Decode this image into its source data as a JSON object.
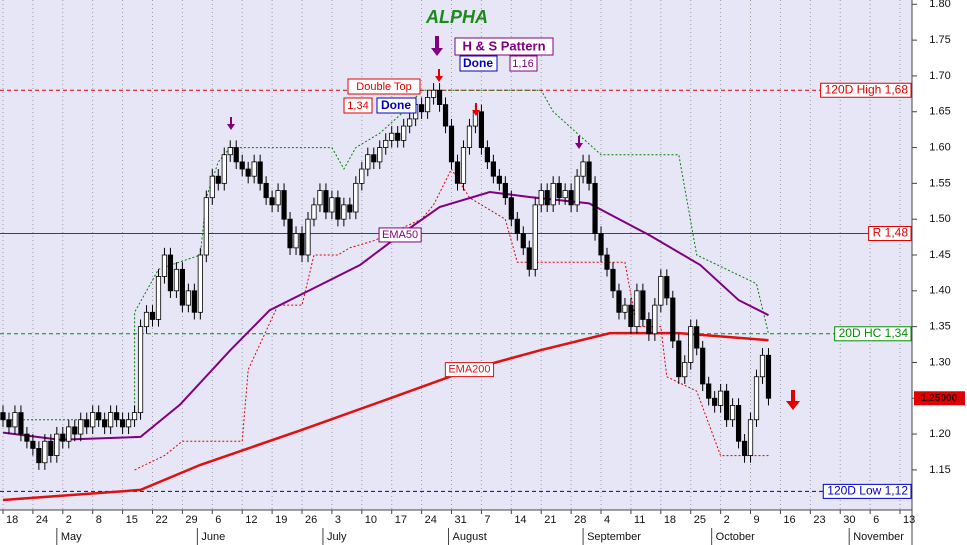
{
  "chart_data": {
    "type": "candlestick",
    "title": "ALPHA",
    "annotations": [
      "H & S Pattern",
      "Done",
      "1,16",
      "Double Top",
      "1,34",
      "Done"
    ],
    "x": [
      0,
      1,
      2,
      3,
      4,
      5,
      6,
      7,
      8,
      9,
      10,
      11,
      12,
      13,
      14,
      15,
      16,
      17,
      18,
      19,
      20,
      21,
      22,
      23,
      24,
      25,
      26,
      27,
      28,
      29,
      30,
      31,
      32,
      33,
      34,
      35,
      36,
      37,
      38,
      39,
      40,
      41,
      42,
      43,
      44,
      45,
      46,
      47,
      48,
      49,
      50,
      51,
      52,
      53,
      54,
      55,
      56,
      57,
      58,
      59,
      60,
      61,
      62,
      63,
      64,
      65,
      66,
      67,
      68,
      69,
      70,
      71,
      72,
      73,
      74,
      75,
      76,
      77,
      78,
      79,
      80,
      81,
      82,
      83,
      84,
      85,
      86,
      87,
      88,
      89,
      90,
      91,
      92,
      93,
      94,
      95,
      96,
      97,
      98,
      99,
      100,
      101,
      102,
      103,
      104,
      105,
      106,
      107,
      108,
      109,
      110,
      111,
      112,
      113,
      114,
      115,
      116,
      117,
      118,
      119,
      120,
      121,
      122,
      123,
      124,
      125,
      126,
      127,
      128
    ],
    "open": [
      1.23,
      1.22,
      1.21,
      1.23,
      1.2,
      1.19,
      1.18,
      1.16,
      1.19,
      1.17,
      1.2,
      1.19,
      1.21,
      1.2,
      1.22,
      1.21,
      1.23,
      1.22,
      1.21,
      1.23,
      1.22,
      1.21,
      1.22,
      1.23,
      1.35,
      1.37,
      1.36,
      1.42,
      1.45,
      1.4,
      1.43,
      1.38,
      1.4,
      1.37,
      1.45,
      1.53,
      1.56,
      1.55,
      1.59,
      1.6,
      1.58,
      1.57,
      1.56,
      1.58,
      1.55,
      1.53,
      1.52,
      1.54,
      1.5,
      1.46,
      1.48,
      1.45,
      1.5,
      1.52,
      1.54,
      1.51,
      1.53,
      1.5,
      1.52,
      1.51,
      1.55,
      1.57,
      1.59,
      1.58,
      1.6,
      1.61,
      1.62,
      1.61,
      1.63,
      1.64,
      1.66,
      1.65,
      1.67,
      1.68,
      1.66,
      1.63,
      1.58,
      1.55,
      1.6,
      1.63,
      1.65,
      1.6,
      1.58,
      1.56,
      1.55,
      1.53,
      1.5,
      1.48,
      1.46,
      1.43,
      1.52,
      1.54,
      1.52,
      1.55,
      1.53,
      1.54,
      1.52,
      1.56,
      1.58,
      1.55,
      1.48,
      1.45,
      1.43,
      1.4,
      1.37,
      1.38,
      1.35,
      1.4,
      1.36,
      1.34,
      1.38,
      1.42,
      1.39,
      1.33,
      1.28,
      1.3,
      1.35,
      1.32,
      1.27,
      1.25,
      1.24,
      1.26,
      1.22,
      1.24,
      1.19,
      1.17,
      1.22,
      1.28,
      1.31
    ],
    "high": [
      1.24,
      1.23,
      1.24,
      1.24,
      1.21,
      1.2,
      1.19,
      1.2,
      1.2,
      1.21,
      1.21,
      1.22,
      1.22,
      1.23,
      1.23,
      1.24,
      1.24,
      1.23,
      1.24,
      1.24,
      1.23,
      1.23,
      1.24,
      1.36,
      1.38,
      1.38,
      1.43,
      1.46,
      1.46,
      1.44,
      1.44,
      1.41,
      1.41,
      1.46,
      1.54,
      1.57,
      1.57,
      1.6,
      1.61,
      1.61,
      1.59,
      1.58,
      1.59,
      1.59,
      1.56,
      1.54,
      1.55,
      1.55,
      1.51,
      1.49,
      1.49,
      1.51,
      1.53,
      1.55,
      1.55,
      1.54,
      1.54,
      1.53,
      1.53,
      1.56,
      1.58,
      1.6,
      1.6,
      1.61,
      1.62,
      1.63,
      1.63,
      1.64,
      1.65,
      1.67,
      1.67,
      1.68,
      1.69,
      1.69,
      1.67,
      1.64,
      1.59,
      1.61,
      1.64,
      1.66,
      1.66,
      1.61,
      1.59,
      1.57,
      1.56,
      1.54,
      1.51,
      1.49,
      1.47,
      1.53,
      1.55,
      1.55,
      1.56,
      1.56,
      1.55,
      1.55,
      1.57,
      1.59,
      1.59,
      1.56,
      1.49,
      1.46,
      1.44,
      1.41,
      1.39,
      1.39,
      1.41,
      1.41,
      1.37,
      1.39,
      1.43,
      1.43,
      1.4,
      1.34,
      1.31,
      1.36,
      1.36,
      1.33,
      1.28,
      1.26,
      1.27,
      1.27,
      1.25,
      1.25,
      1.2,
      1.23,
      1.29,
      1.32,
      1.32
    ],
    "low": [
      1.21,
      1.2,
      1.2,
      1.19,
      1.18,
      1.17,
      1.15,
      1.15,
      1.16,
      1.16,
      1.18,
      1.18,
      1.19,
      1.19,
      1.2,
      1.2,
      1.21,
      1.2,
      1.2,
      1.21,
      1.2,
      1.2,
      1.21,
      1.22,
      1.34,
      1.35,
      1.35,
      1.41,
      1.39,
      1.39,
      1.37,
      1.37,
      1.36,
      1.36,
      1.44,
      1.52,
      1.54,
      1.54,
      1.58,
      1.57,
      1.56,
      1.55,
      1.55,
      1.54,
      1.52,
      1.51,
      1.51,
      1.49,
      1.45,
      1.45,
      1.44,
      1.44,
      1.49,
      1.51,
      1.5,
      1.5,
      1.49,
      1.49,
      1.5,
      1.5,
      1.54,
      1.56,
      1.57,
      1.57,
      1.59,
      1.6,
      1.6,
      1.6,
      1.62,
      1.63,
      1.64,
      1.64,
      1.66,
      1.65,
      1.62,
      1.57,
      1.54,
      1.54,
      1.59,
      1.62,
      1.59,
      1.57,
      1.55,
      1.54,
      1.52,
      1.49,
      1.47,
      1.45,
      1.42,
      1.42,
      1.51,
      1.51,
      1.51,
      1.52,
      1.52,
      1.51,
      1.51,
      1.55,
      1.54,
      1.47,
      1.44,
      1.42,
      1.39,
      1.36,
      1.36,
      1.34,
      1.34,
      1.35,
      1.33,
      1.33,
      1.37,
      1.38,
      1.32,
      1.27,
      1.27,
      1.29,
      1.31,
      1.26,
      1.24,
      1.23,
      1.23,
      1.21,
      1.21,
      1.18,
      1.16,
      1.16,
      1.21,
      1.27,
      1.24
    ],
    "close": [
      1.22,
      1.21,
      1.23,
      1.2,
      1.19,
      1.18,
      1.16,
      1.19,
      1.17,
      1.2,
      1.19,
      1.21,
      1.2,
      1.22,
      1.21,
      1.23,
      1.22,
      1.21,
      1.23,
      1.22,
      1.21,
      1.22,
      1.23,
      1.35,
      1.37,
      1.36,
      1.42,
      1.45,
      1.4,
      1.43,
      1.38,
      1.4,
      1.37,
      1.45,
      1.53,
      1.56,
      1.55,
      1.59,
      1.6,
      1.58,
      1.57,
      1.56,
      1.58,
      1.55,
      1.53,
      1.52,
      1.54,
      1.5,
      1.46,
      1.48,
      1.45,
      1.5,
      1.52,
      1.54,
      1.51,
      1.53,
      1.5,
      1.52,
      1.51,
      1.55,
      1.57,
      1.59,
      1.58,
      1.6,
      1.61,
      1.62,
      1.61,
      1.63,
      1.64,
      1.66,
      1.65,
      1.67,
      1.68,
      1.66,
      1.63,
      1.58,
      1.55,
      1.6,
      1.63,
      1.65,
      1.6,
      1.58,
      1.56,
      1.55,
      1.53,
      1.5,
      1.48,
      1.46,
      1.43,
      1.52,
      1.54,
      1.52,
      1.55,
      1.53,
      1.54,
      1.52,
      1.56,
      1.58,
      1.55,
      1.48,
      1.45,
      1.43,
      1.4,
      1.37,
      1.38,
      1.35,
      1.4,
      1.36,
      1.34,
      1.38,
      1.42,
      1.39,
      1.33,
      1.28,
      1.3,
      1.35,
      1.32,
      1.27,
      1.25,
      1.24,
      1.26,
      1.22,
      1.24,
      1.19,
      1.17,
      1.22,
      1.28,
      1.31,
      1.25
    ],
    "candle_colors": {
      "up": "#ffffff",
      "down": "#000000"
    },
    "series": [
      {
        "name": "EMA50",
        "color": "#800080",
        "x": [
          0,
          9.5,
          23,
          29.6,
          38,
          44.6,
          53,
          59.7,
          66.4,
          73,
          81.4,
          88,
          98,
          108,
          116.6,
          123,
          128
        ],
        "values": [
          1.202,
          1.192,
          1.196,
          1.241,
          1.317,
          1.373,
          1.408,
          1.436,
          1.478,
          1.517,
          1.538,
          1.531,
          1.522,
          1.478,
          1.436,
          1.387,
          1.366
        ]
      },
      {
        "name": "EMA200",
        "color": "#e01010",
        "x": [
          0,
          23,
          33,
          50,
          66.4,
          78,
          89.8,
          101.5,
          113,
          128
        ],
        "values": [
          1.108,
          1.122,
          1.157,
          1.206,
          1.255,
          1.29,
          1.317,
          1.341,
          1.341,
          1.331
        ]
      }
    ],
    "channels": [
      {
        "color": "#008000",
        "x": [
          0,
          22,
          22,
          26,
          33,
          34,
          36,
          38,
          55,
          57,
          59,
          63,
          67,
          70,
          90,
          92,
          96,
          100,
          113,
          116,
          126,
          128
        ],
        "values": [
          1.22,
          1.22,
          1.37,
          1.43,
          1.45,
          1.53,
          1.58,
          1.6,
          1.6,
          1.57,
          1.6,
          1.62,
          1.65,
          1.68,
          1.68,
          1.65,
          1.62,
          1.59,
          1.59,
          1.45,
          1.41,
          1.34
        ]
      },
      {
        "color": "#e00000",
        "x": [
          22,
          27,
          30,
          40,
          41,
          46,
          50,
          52,
          56,
          58,
          62,
          70,
          72,
          75,
          78,
          84,
          86,
          104,
          106,
          110,
          111,
          116,
          120,
          128
        ],
        "values": [
          1.15,
          1.17,
          1.19,
          1.19,
          1.29,
          1.38,
          1.38,
          1.45,
          1.45,
          1.46,
          1.47,
          1.5,
          1.52,
          1.57,
          1.53,
          1.5,
          1.44,
          1.44,
          1.35,
          1.35,
          1.28,
          1.26,
          1.17,
          1.17
        ]
      }
    ],
    "levels": [
      {
        "value": 1.68,
        "label": "120D High 1,68",
        "color": "#e00000",
        "style": "dashed"
      },
      {
        "value": 1.48,
        "label": "R 1,48",
        "color": "#e00000",
        "style": "solid"
      },
      {
        "value": 1.34,
        "label": "20D HC 1,34",
        "color": "#009000",
        "style": "dashed"
      },
      {
        "value": 1.12,
        "label": "120D Low 1,12",
        "color": "#0000c0",
        "style": "dashed"
      }
    ],
    "last_price": {
      "value": 1.25,
      "label": "1.25000",
      "color": "#e00000"
    },
    "xlim": [
      -0.5,
      152
    ],
    "xticks": [
      {
        "value": 0,
        "label": "18"
      },
      {
        "value": 5,
        "label": "24"
      },
      {
        "value": 10,
        "label": "2"
      },
      {
        "value": 15,
        "label": "8"
      },
      {
        "value": 20,
        "label": "15"
      },
      {
        "value": 25,
        "label": "22"
      },
      {
        "value": 30,
        "label": "29"
      },
      {
        "value": 35,
        "label": "6"
      },
      {
        "value": 40,
        "label": "12"
      },
      {
        "value": 45,
        "label": "19"
      },
      {
        "value": 50,
        "label": "26"
      },
      {
        "value": 55,
        "label": "3"
      },
      {
        "value": 60,
        "label": "10"
      },
      {
        "value": 65,
        "label": "17"
      },
      {
        "value": 70,
        "label": "24"
      },
      {
        "value": 75,
        "label": "31"
      },
      {
        "value": 80,
        "label": "7"
      },
      {
        "value": 85,
        "label": "14"
      },
      {
        "value": 90,
        "label": "21"
      },
      {
        "value": 95,
        "label": "28"
      },
      {
        "value": 100,
        "label": "4"
      },
      {
        "value": 105,
        "label": "11"
      },
      {
        "value": 110,
        "label": "18"
      },
      {
        "value": 115,
        "label": "25"
      },
      {
        "value": 120,
        "label": "2"
      },
      {
        "value": 125,
        "label": "9"
      },
      {
        "value": 130,
        "label": "16"
      },
      {
        "value": 135,
        "label": "23"
      },
      {
        "value": 140,
        "label": "30"
      },
      {
        "value": 145,
        "label": "6"
      },
      {
        "value": 150,
        "label": "13"
      }
    ],
    "month_ticks": [
      {
        "value": 9,
        "label": "May"
      },
      {
        "value": 32.5,
        "label": "June"
      },
      {
        "value": 53.5,
        "label": "July"
      },
      {
        "value": 74.5,
        "label": "August"
      },
      {
        "value": 97,
        "label": "September"
      },
      {
        "value": 118.5,
        "label": "October"
      },
      {
        "value": 141.5,
        "label": "November"
      }
    ],
    "ylim": [
      1.094,
      1.806
    ],
    "yticks": [
      1.15,
      {
        "value": 1.2,
        "label": "1.20"
      },
      1.25,
      {
        "value": 1.3,
        "label": "1.30"
      },
      1.35,
      {
        "value": 1.4,
        "label": "1.40"
      },
      1.45,
      {
        "value": 1.5,
        "label": "1.50"
      },
      1.55,
      {
        "value": 1.6,
        "label": "1.60"
      },
      1.65,
      {
        "value": 1.7,
        "label": "1.70"
      },
      1.75,
      {
        "value": 1.8,
        "label": "1.80"
      }
    ],
    "xgrid": true
  }
}
